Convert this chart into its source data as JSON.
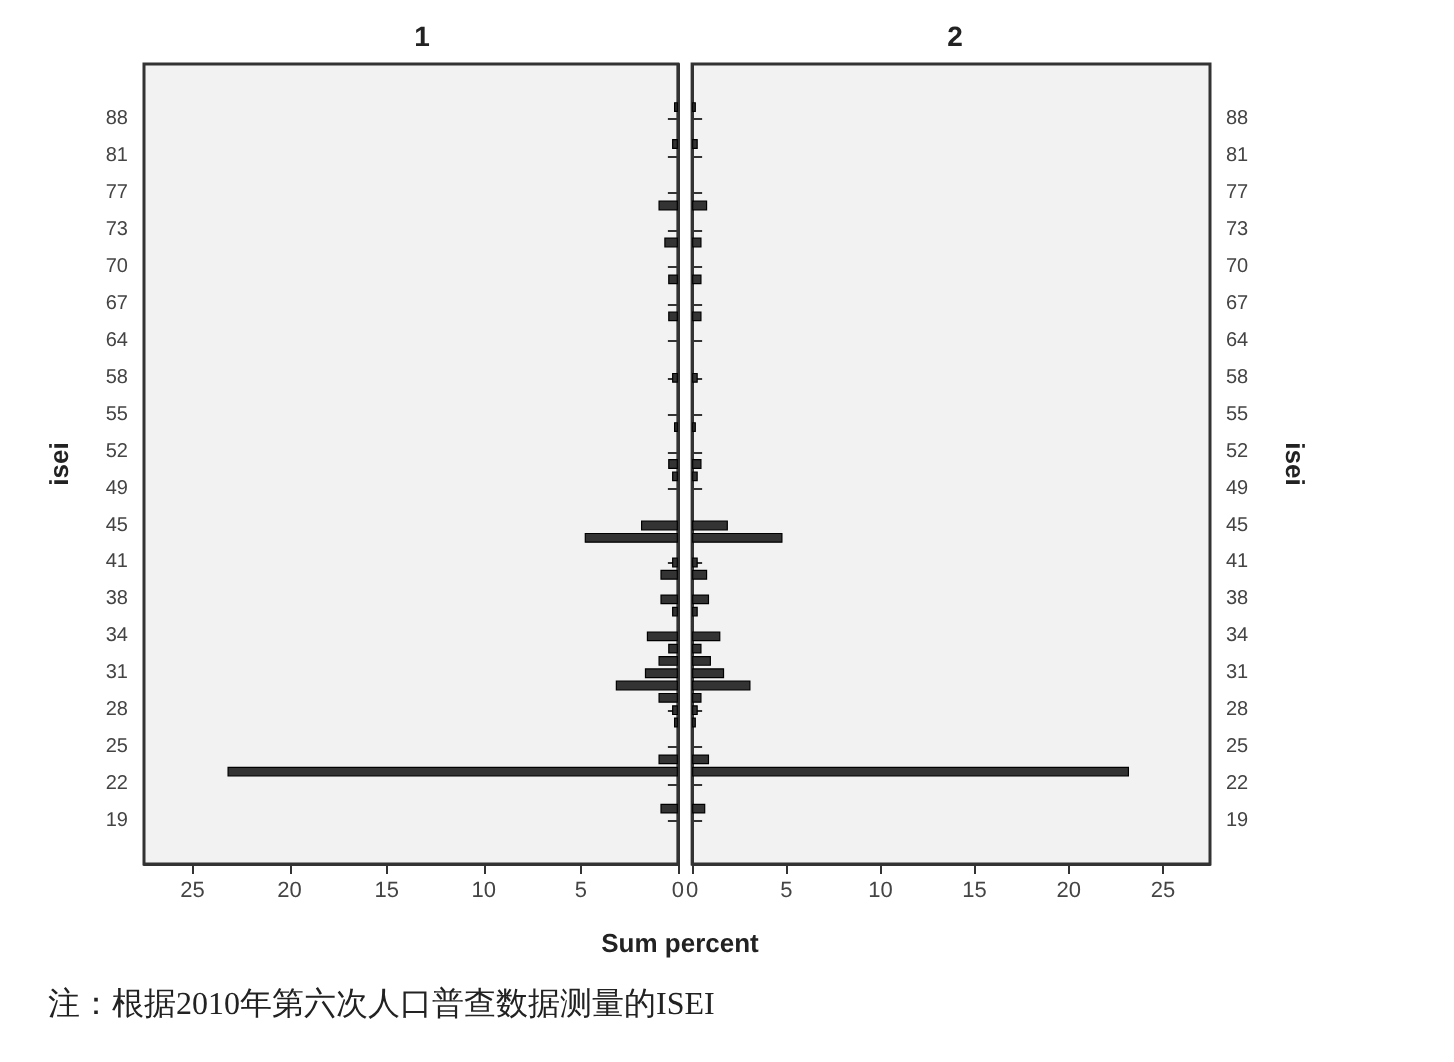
{
  "chart_data": [
    {
      "type": "bar",
      "title": "1",
      "orientation": "horizontal",
      "ylabel": "isei",
      "xlabel": "Sum percent",
      "grid": false,
      "xlim": [
        27.5,
        0
      ],
      "xticks": [
        25,
        20,
        15,
        10,
        5,
        0
      ],
      "categories": [
        null,
        null,
        null,
        null,
        "88",
        null,
        null,
        "81",
        null,
        null,
        "77",
        null,
        null,
        "73",
        null,
        null,
        "70",
        null,
        null,
        "67",
        null,
        null,
        "64",
        null,
        null,
        "58",
        null,
        null,
        "55",
        null,
        null,
        "52",
        null,
        null,
        "49",
        null,
        null,
        "45",
        null,
        null,
        "41",
        null,
        null,
        "38",
        null,
        null,
        "34",
        null,
        null,
        "31",
        null,
        null,
        "28",
        null,
        null,
        "25",
        null,
        null,
        "22",
        null,
        null,
        "19",
        null,
        null,
        null
      ],
      "series": [
        {
          "color": "#333333",
          "values": [
            null,
            null,
            null,
            0.2,
            null,
            null,
            0.3,
            null,
            null,
            null,
            null,
            1.0,
            null,
            null,
            0.7,
            null,
            null,
            0.5,
            null,
            null,
            0.5,
            null,
            null,
            null,
            null,
            0.3,
            null,
            null,
            null,
            0.2,
            null,
            null,
            0.5,
            0.3,
            null,
            null,
            null,
            1.9,
            4.8,
            null,
            0.3,
            0.9,
            null,
            0.9,
            0.3,
            null,
            1.6,
            0.5,
            1.0,
            1.7,
            3.2,
            1.0,
            0.3,
            0.2,
            null,
            null,
            1.0,
            23.2,
            null,
            null,
            0.9,
            null,
            null,
            null,
            null
          ]
        }
      ],
      "annotations": [
        "注：根据2010年第六次人口普查数据测量的ISEI"
      ]
    },
    {
      "type": "bar",
      "title": "2",
      "orientation": "horizontal",
      "ylabel": "isei",
      "grid": false,
      "xlim": [
        0,
        27.5
      ],
      "xticks": [
        0,
        5,
        10,
        15,
        20,
        25
      ],
      "categories": [
        null,
        null,
        null,
        null,
        "88",
        null,
        null,
        "81",
        null,
        null,
        "77",
        null,
        null,
        "73",
        null,
        null,
        "70",
        null,
        null,
        "67",
        null,
        null,
        "64",
        null,
        null,
        "58",
        null,
        null,
        "55",
        null,
        null,
        "52",
        null,
        null,
        "49",
        null,
        null,
        "45",
        null,
        null,
        "41",
        null,
        null,
        "38",
        null,
        null,
        "34",
        null,
        null,
        "31",
        null,
        null,
        "28",
        null,
        null,
        "25",
        null,
        null,
        "22",
        null,
        null,
        "19",
        null,
        null,
        null
      ],
      "series": [
        {
          "color": "#333333",
          "values": [
            null,
            null,
            null,
            0.2,
            null,
            null,
            0.3,
            null,
            null,
            null,
            null,
            0.8,
            null,
            null,
            0.5,
            null,
            null,
            0.5,
            null,
            null,
            0.5,
            null,
            null,
            null,
            null,
            0.3,
            null,
            null,
            null,
            0.2,
            null,
            null,
            0.5,
            0.3,
            null,
            null,
            null,
            1.9,
            4.8,
            null,
            0.3,
            0.8,
            null,
            0.9,
            0.3,
            null,
            1.5,
            0.5,
            1.0,
            1.7,
            3.1,
            0.5,
            0.3,
            0.2,
            null,
            null,
            0.9,
            23.2,
            null,
            null,
            0.7,
            null,
            null,
            null,
            null
          ]
        }
      ]
    }
  ]
}
